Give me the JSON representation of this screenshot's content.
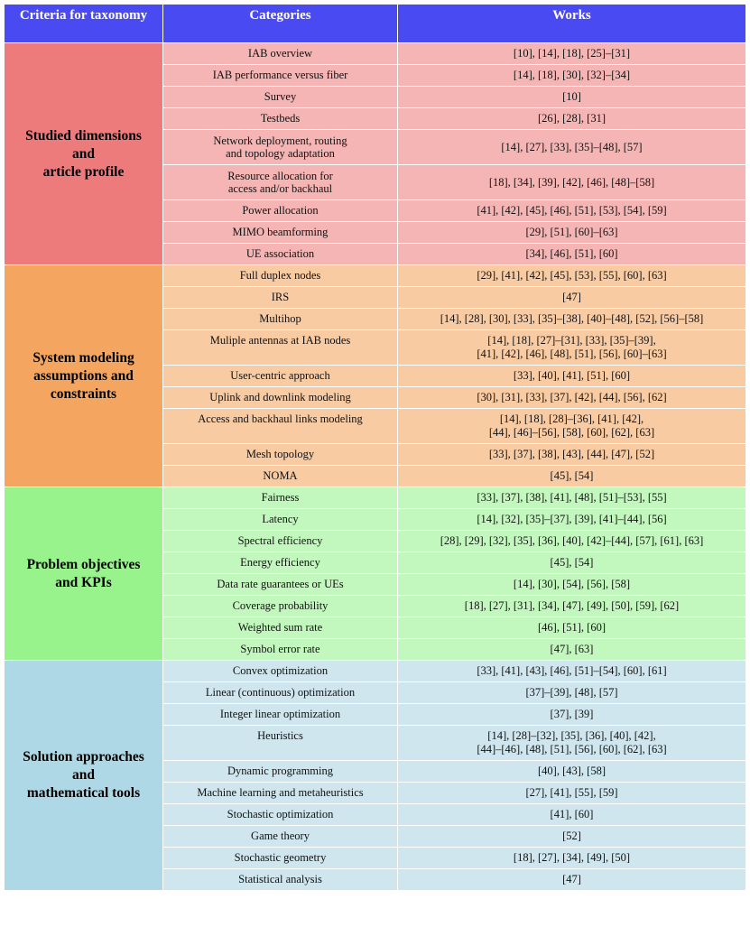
{
  "header": {
    "criteria": "Criteria for taxonomy",
    "categories": "Categories",
    "works": "Works"
  },
  "groups": [
    {
      "criteria": [
        "Studied dimensions",
        "and",
        "article profile"
      ],
      "rows": [
        {
          "category": [
            "IAB overview"
          ],
          "works": [
            "[10], [14], [18], [25]–[31]"
          ]
        },
        {
          "category": [
            "IAB performance versus fiber"
          ],
          "works": [
            "[14], [18], [30], [32]–[34]"
          ]
        },
        {
          "category": [
            "Survey"
          ],
          "works": [
            "[10]"
          ]
        },
        {
          "category": [
            "Testbeds"
          ],
          "works": [
            "[26], [28], [31]"
          ]
        },
        {
          "category": [
            "Network deployment, routing",
            "and topology adaptation"
          ],
          "works": [
            "[14], [27], [33], [35]–[48], [57]"
          ]
        },
        {
          "category": [
            "Resource allocation for",
            "access and/or backhaul"
          ],
          "works": [
            "[18], [34], [39], [42], [46], [48]–[58]"
          ]
        },
        {
          "category": [
            "Power allocation"
          ],
          "works": [
            "[41], [42], [45], [46], [51], [53], [54], [59]"
          ]
        },
        {
          "category": [
            "MIMO beamforming"
          ],
          "works": [
            "[29], [51], [60]–[63]"
          ]
        },
        {
          "category": [
            "UE association"
          ],
          "works": [
            "[34], [46], [51], [60]"
          ]
        }
      ]
    },
    {
      "criteria": [
        "System modeling",
        "assumptions and",
        "constraints"
      ],
      "rows": [
        {
          "category": [
            "Full duplex nodes"
          ],
          "works": [
            "[29], [41], [42], [45], [53], [55], [60], [63]"
          ]
        },
        {
          "category": [
            "IRS"
          ],
          "works": [
            "[47]"
          ]
        },
        {
          "category": [
            "Multihop"
          ],
          "works": [
            "[14], [28], [30], [33], [35]–[38], [40]–[48], [52], [56]–[58]"
          ]
        },
        {
          "category": [
            "Muliple antennas at IAB nodes"
          ],
          "works": [
            "[14], [18], [27]–[31], [33], [35]–[39],",
            "[41], [42], [46], [48], [51], [56], [60]–[63]"
          ]
        },
        {
          "category": [
            "User-centric approach"
          ],
          "works": [
            "[33], [40], [41], [51], [60]"
          ]
        },
        {
          "category": [
            "Uplink and downlink modeling"
          ],
          "works": [
            "[30], [31], [33], [37], [42], [44], [56], [62]"
          ]
        },
        {
          "category": [
            "Access and backhaul links modeling"
          ],
          "works": [
            "[14], [18], [28]–[36], [41], [42],",
            "[44], [46]–[56], [58], [60], [62], [63]"
          ]
        },
        {
          "category": [
            "Mesh topology"
          ],
          "works": [
            "[33], [37], [38], [43], [44], [47], [52]"
          ]
        },
        {
          "category": [
            "NOMA"
          ],
          "works": [
            "[45], [54]"
          ]
        }
      ]
    },
    {
      "criteria": [
        "Problem objectives",
        "and KPIs"
      ],
      "rows": [
        {
          "category": [
            "Fairness"
          ],
          "works": [
            "[33], [37], [38], [41], [48], [51]–[53], [55]"
          ]
        },
        {
          "category": [
            "Latency"
          ],
          "works": [
            "[14], [32], [35]–[37], [39], [41]–[44], [56]"
          ]
        },
        {
          "category": [
            "Spectral efficiency"
          ],
          "works": [
            "[28], [29], [32], [35], [36], [40], [42]–[44], [57], [61], [63]"
          ]
        },
        {
          "category": [
            "Energy efficiency"
          ],
          "works": [
            "[45], [54]"
          ]
        },
        {
          "category": [
            "Data rate guarantees or UEs"
          ],
          "works": [
            "[14], [30], [54], [56], [58]"
          ]
        },
        {
          "category": [
            "Coverage probability"
          ],
          "works": [
            "[18], [27], [31], [34], [47], [49], [50], [59], [62]"
          ]
        },
        {
          "category": [
            "Weighted sum rate"
          ],
          "works": [
            "[46], [51], [60]"
          ]
        },
        {
          "category": [
            "Symbol error rate"
          ],
          "works": [
            "[47], [63]"
          ]
        }
      ]
    },
    {
      "criteria": [
        "Solution approaches",
        "and",
        "mathematical tools"
      ],
      "rows": [
        {
          "category": [
            "Convex optimization"
          ],
          "works": [
            "[33], [41], [43], [46], [51]–[54], [60], [61]"
          ]
        },
        {
          "category": [
            "Linear (continuous) optimization"
          ],
          "works": [
            "[37]–[39], [48], [57]"
          ]
        },
        {
          "category": [
            "Integer linear optimization"
          ],
          "works": [
            "[37], [39]"
          ]
        },
        {
          "category": [
            "Heuristics"
          ],
          "works": [
            "[14], [28]–[32], [35], [36], [40], [42],",
            "[44]–[46], [48], [51], [56], [60], [62], [63]"
          ]
        },
        {
          "category": [
            "Dynamic programming"
          ],
          "works": [
            "[40], [43], [58]"
          ]
        },
        {
          "category": [
            "Machine learning and metaheuristics"
          ],
          "works": [
            "[27], [41], [55], [59]"
          ]
        },
        {
          "category": [
            "Stochastic optimization"
          ],
          "works": [
            "[41], [60]"
          ]
        },
        {
          "category": [
            "Game theory"
          ],
          "works": [
            "[52]"
          ]
        },
        {
          "category": [
            "Stochastic geometry"
          ],
          "works": [
            "[18], [27], [34], [49], [50]"
          ]
        },
        {
          "category": [
            "Statistical analysis"
          ],
          "works": [
            "[47]"
          ]
        }
      ]
    }
  ]
}
